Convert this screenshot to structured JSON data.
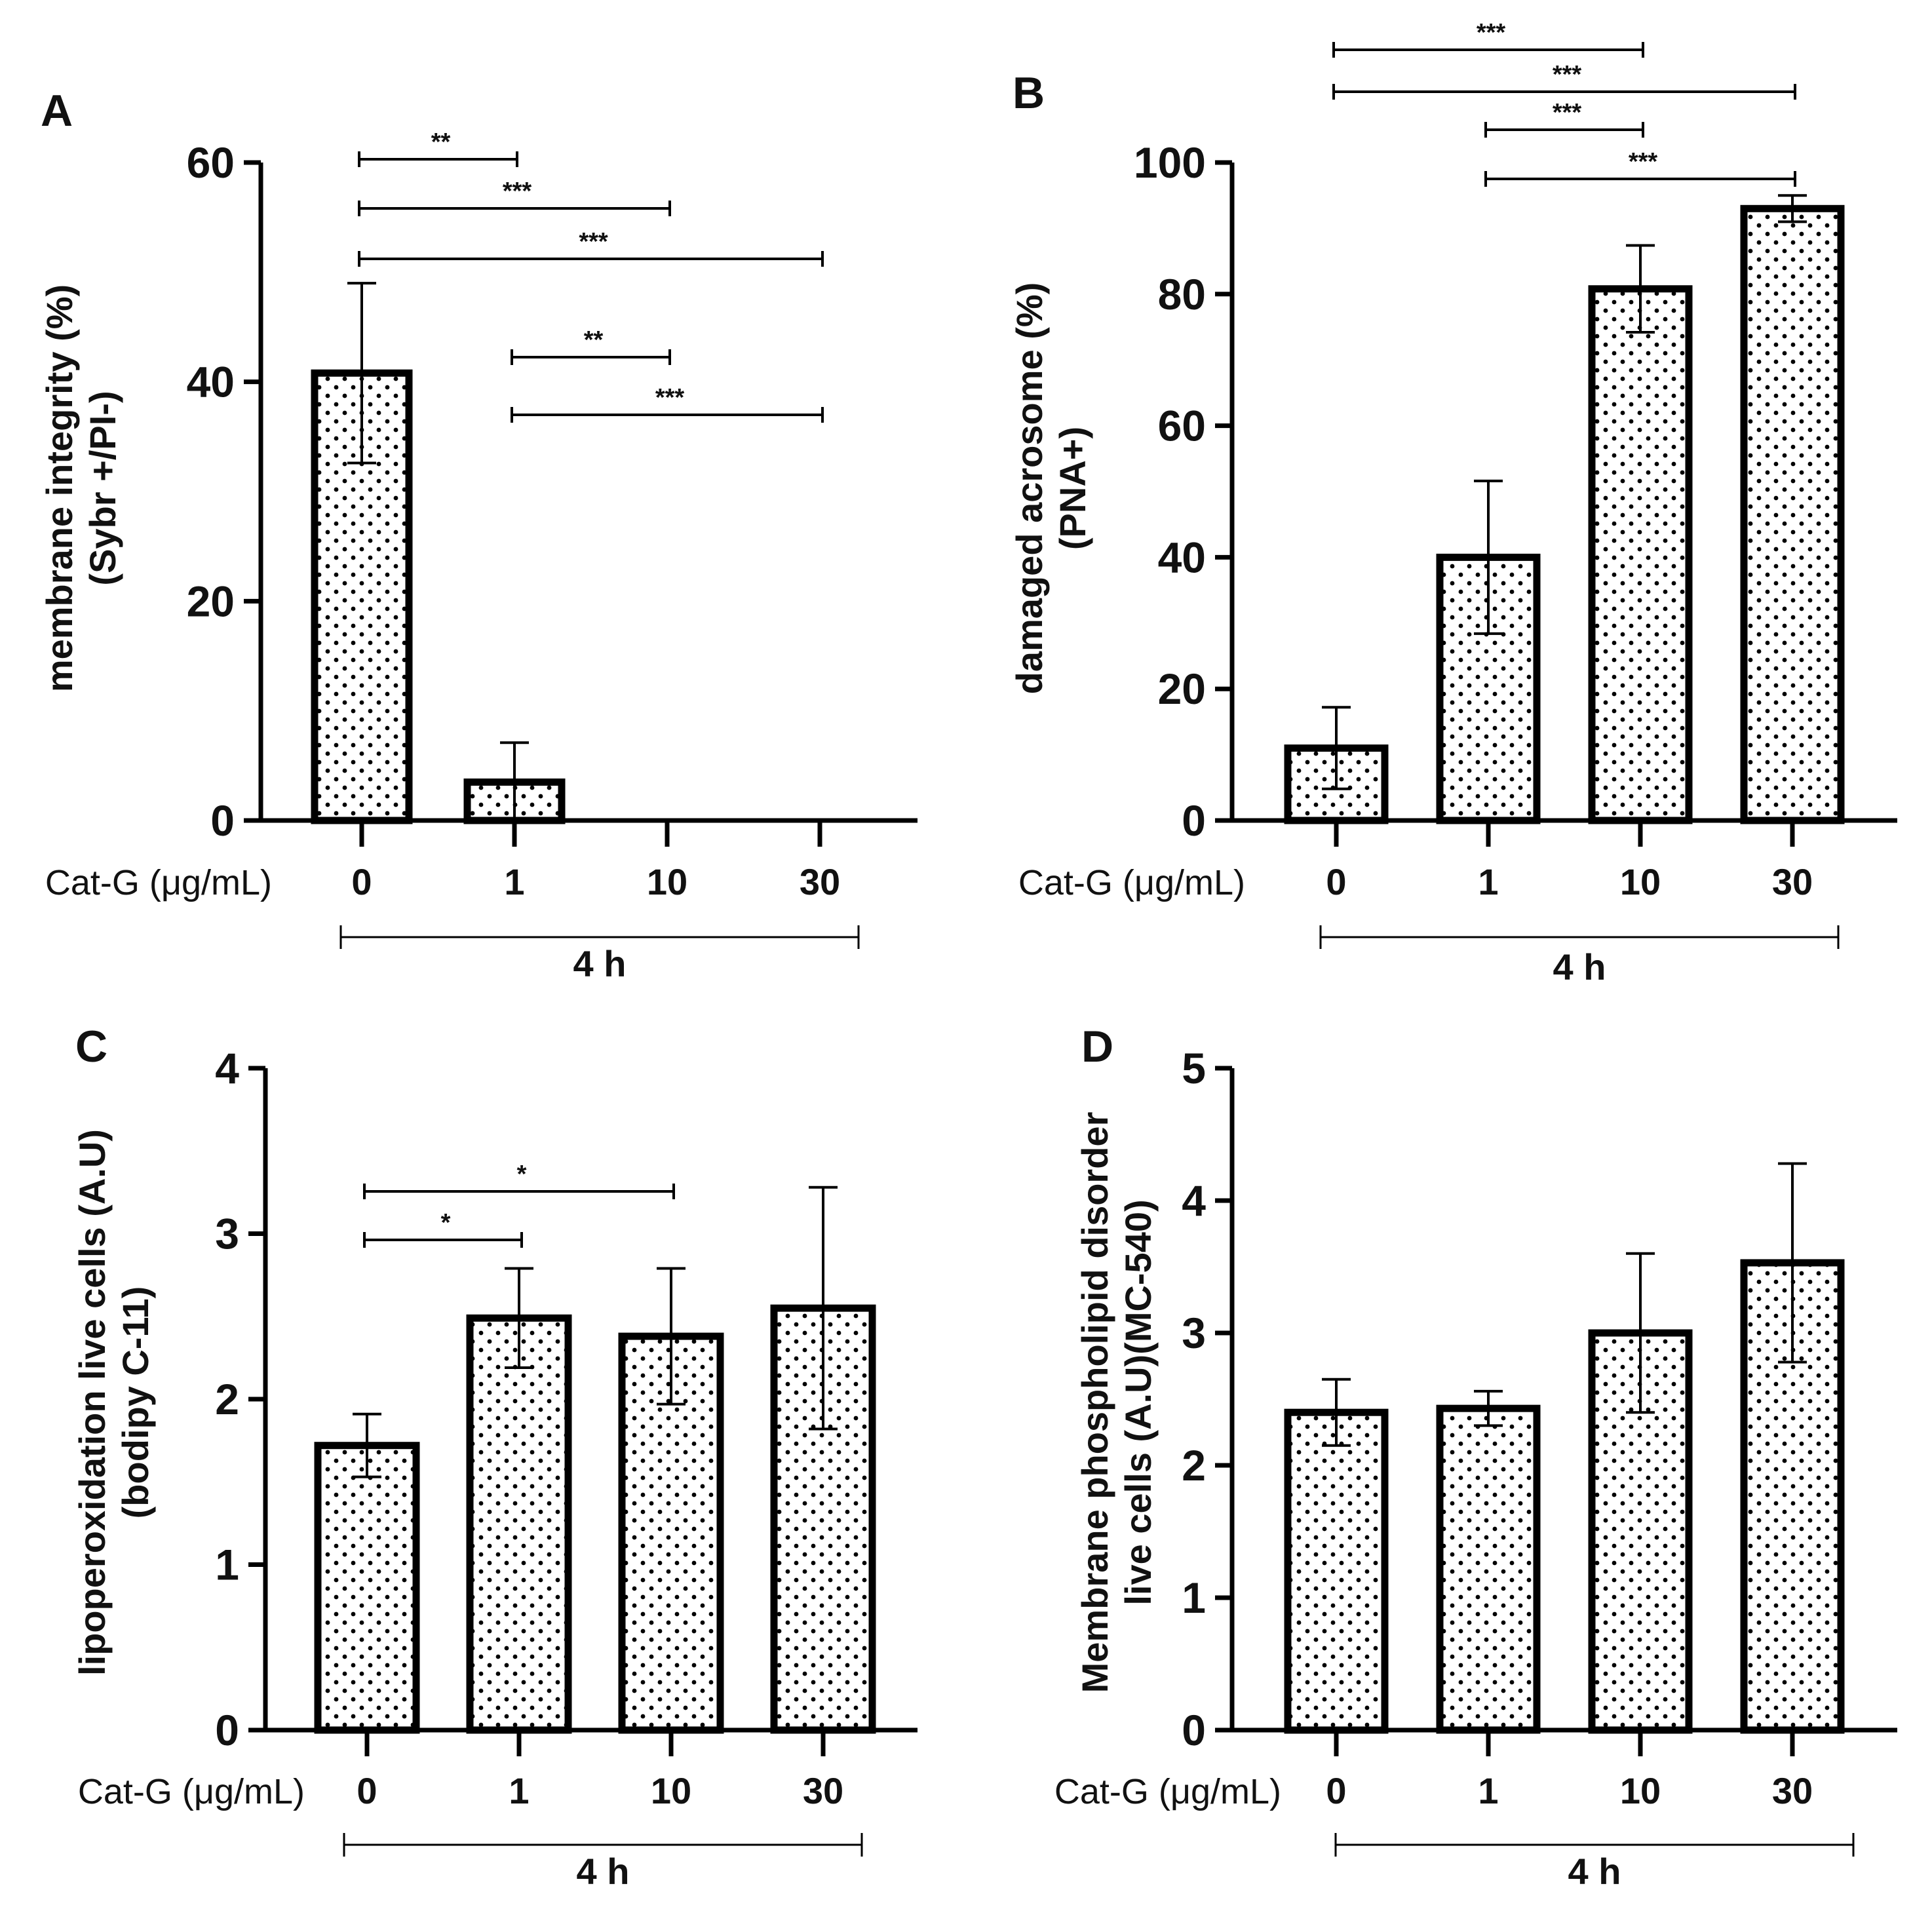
{
  "figure_style": {
    "bar_fill": "#ffffff",
    "bar_stroke": "#000000",
    "dot_color": "#000000",
    "pattern": "dotted"
  },
  "chart_data": [
    {
      "type": "bar",
      "panel": "A",
      "categories": [
        "0",
        "1",
        "10",
        "30"
      ],
      "values": [
        40.8,
        3.5,
        0,
        0
      ],
      "errors": [
        8.2,
        3.6,
        0,
        0
      ],
      "ylabel_line1": "membrane integrity (%)",
      "ylabel_line2": "(Sybr +/PI-)",
      "ylim": [
        0,
        60
      ],
      "yticks": [
        0,
        20,
        40,
        60
      ],
      "condition_label": "Cat-G (μg/mL)",
      "time_label": "4 h",
      "significance": [
        {
          "from": 0,
          "to": 1,
          "label": "**"
        },
        {
          "from": 0,
          "to": 2,
          "label": "***"
        },
        {
          "from": 0,
          "to": 3,
          "label": "***"
        },
        {
          "from": 1,
          "to": 2,
          "label": "**"
        },
        {
          "from": 1,
          "to": 3,
          "label": "***"
        }
      ]
    },
    {
      "type": "bar",
      "panel": "B",
      "categories": [
        "0",
        "1",
        "10",
        "30"
      ],
      "values": [
        11,
        40,
        80.8,
        93
      ],
      "errors": [
        6.2,
        11.6,
        6.6,
        2.0
      ],
      "ylabel_line1": "damaged acrosome (%)",
      "ylabel_line2": "(PNA+)",
      "ylim": [
        0,
        100
      ],
      "yticks": [
        0,
        20,
        40,
        60,
        80,
        100
      ],
      "condition_label": "Cat-G (μg/mL)",
      "time_label": "4 h",
      "significance": [
        {
          "from": 0,
          "to": 2,
          "label": "***"
        },
        {
          "from": 0,
          "to": 3,
          "label": "***"
        },
        {
          "from": 1,
          "to": 2,
          "label": "***"
        },
        {
          "from": 1,
          "to": 3,
          "label": "***"
        }
      ]
    },
    {
      "type": "bar",
      "panel": "C",
      "categories": [
        "0",
        "1",
        "10",
        "30"
      ],
      "values": [
        1.72,
        2.49,
        2.38,
        2.55
      ],
      "errors": [
        0.19,
        0.3,
        0.41,
        0.73
      ],
      "ylabel_line1": "lipoperoxidation live cells (A.U)",
      "ylabel_line2": "(bodipy C-11)",
      "ylim": [
        0,
        4
      ],
      "yticks": [
        0,
        1,
        2,
        3,
        4
      ],
      "condition_label": "Cat-G (μg/mL)",
      "time_label": "4 h",
      "significance": [
        {
          "from": 0,
          "to": 2,
          "label": "*"
        },
        {
          "from": 0,
          "to": 1,
          "label": "*"
        }
      ]
    },
    {
      "type": "bar",
      "panel": "D",
      "categories": [
        "0",
        "1",
        "10",
        "30"
      ],
      "values": [
        2.4,
        2.43,
        3.0,
        3.53
      ],
      "errors": [
        0.25,
        0.13,
        0.6,
        0.75
      ],
      "ylabel_line1": "Membrane phospholipid disorder",
      "ylabel_line2": "live cells (A.U)(MC-540)",
      "ylim": [
        0,
        5
      ],
      "yticks": [
        0,
        1,
        2,
        3,
        4,
        5
      ],
      "condition_label": "Cat-G (μg/mL)",
      "time_label": "4 h",
      "significance": []
    }
  ]
}
